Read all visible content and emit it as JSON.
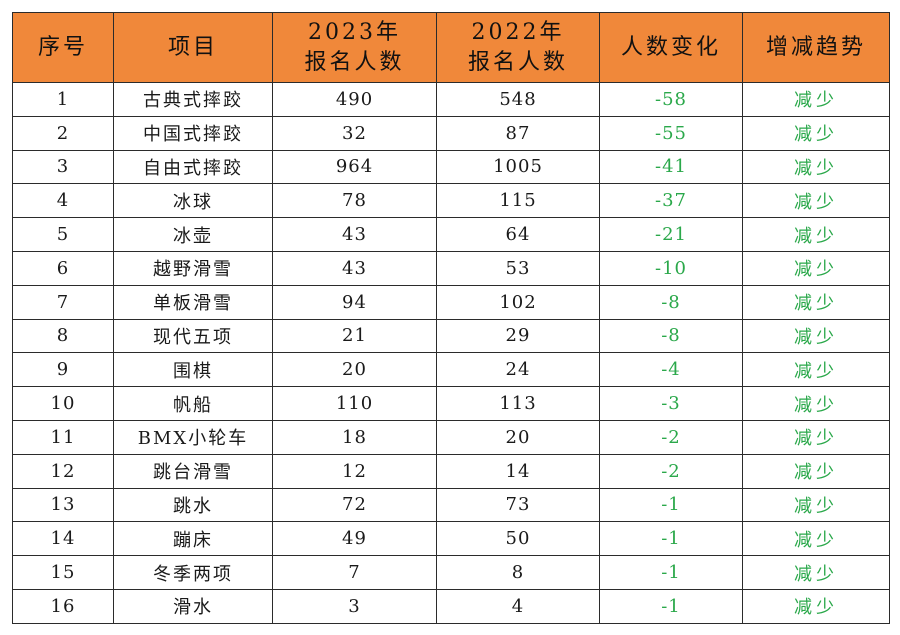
{
  "colors": {
    "header_bg": "#f0883a",
    "decrease_text": "#2aa84a",
    "border": "#2b2b2b"
  },
  "headers": {
    "index": "序号",
    "project": "项目",
    "count_2023": [
      "2023年",
      "报名人数"
    ],
    "count_2022": [
      "2022年",
      "报名人数"
    ],
    "change": "人数变化",
    "trend": "增减趋势"
  },
  "rows": [
    {
      "index": "1",
      "project": "古典式摔跤",
      "count_2023": "490",
      "count_2022": "548",
      "change": "-58",
      "trend": "减少"
    },
    {
      "index": "2",
      "project": "中国式摔跤",
      "count_2023": "32",
      "count_2022": "87",
      "change": "-55",
      "trend": "减少"
    },
    {
      "index": "3",
      "project": "自由式摔跤",
      "count_2023": "964",
      "count_2022": "1005",
      "change": "-41",
      "trend": "减少"
    },
    {
      "index": "4",
      "project": "冰球",
      "count_2023": "78",
      "count_2022": "115",
      "change": "-37",
      "trend": "减少"
    },
    {
      "index": "5",
      "project": "冰壶",
      "count_2023": "43",
      "count_2022": "64",
      "change": "-21",
      "trend": "减少"
    },
    {
      "index": "6",
      "project": "越野滑雪",
      "count_2023": "43",
      "count_2022": "53",
      "change": "-10",
      "trend": "减少"
    },
    {
      "index": "7",
      "project": "单板滑雪",
      "count_2023": "94",
      "count_2022": "102",
      "change": "-8",
      "trend": "减少"
    },
    {
      "index": "8",
      "project": "现代五项",
      "count_2023": "21",
      "count_2022": "29",
      "change": "-8",
      "trend": "减少"
    },
    {
      "index": "9",
      "project": "围棋",
      "count_2023": "20",
      "count_2022": "24",
      "change": "-4",
      "trend": "减少"
    },
    {
      "index": "10",
      "project": "帆船",
      "count_2023": "110",
      "count_2022": "113",
      "change": "-3",
      "trend": "减少"
    },
    {
      "index": "11",
      "project": "BMX小轮车",
      "count_2023": "18",
      "count_2022": "20",
      "change": "-2",
      "trend": "减少"
    },
    {
      "index": "12",
      "project": "跳台滑雪",
      "count_2023": "12",
      "count_2022": "14",
      "change": "-2",
      "trend": "减少"
    },
    {
      "index": "13",
      "project": "跳水",
      "count_2023": "72",
      "count_2022": "73",
      "change": "-1",
      "trend": "减少"
    },
    {
      "index": "14",
      "project": "蹦床",
      "count_2023": "49",
      "count_2022": "50",
      "change": "-1",
      "trend": "减少"
    },
    {
      "index": "15",
      "project": "冬季两项",
      "count_2023": "7",
      "count_2022": "8",
      "change": "-1",
      "trend": "减少"
    },
    {
      "index": "16",
      "project": "滑水",
      "count_2023": "3",
      "count_2022": "4",
      "change": "-1",
      "trend": "减少"
    }
  ]
}
